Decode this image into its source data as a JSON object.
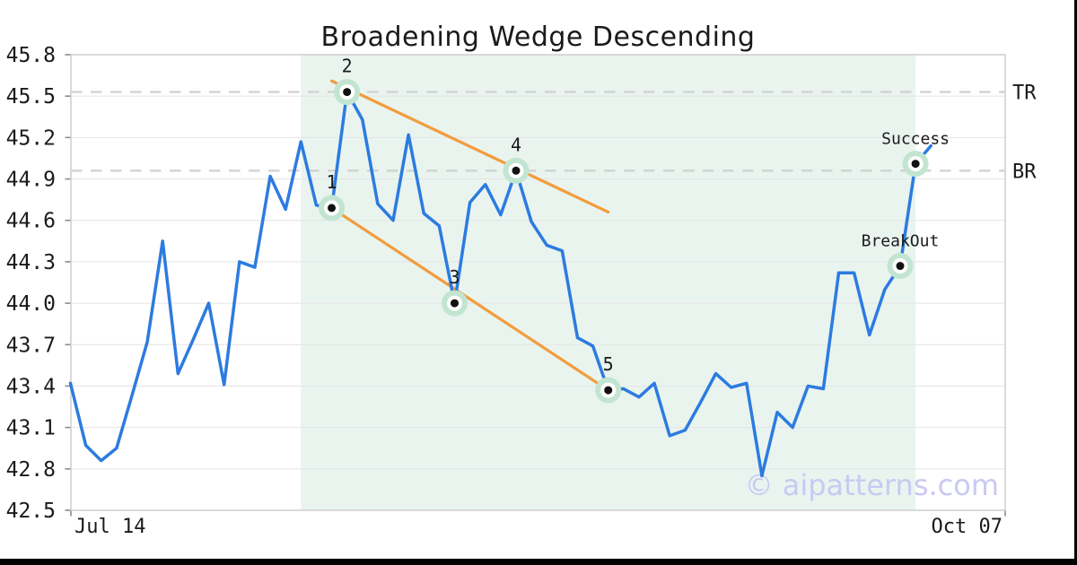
{
  "title": "Broadening Wedge Descending",
  "watermark": "© aipatterns.com",
  "colors": {
    "line": "#2c7be0",
    "trend": "#f39c3d",
    "shade": "#e9f4ef",
    "grid": "#e4e4e4",
    "dashed": "#d2d2d2",
    "axis_border": "#d0d0d0",
    "tick": "#8a8a8a",
    "marker_halo": "#c2e5d1",
    "marker_ring": "#ffffff",
    "marker_dot": "#111111",
    "watermark": "#c9c9f2",
    "text": "#1a1a1a"
  },
  "chart_data": {
    "type": "line",
    "title": "Broadening Wedge Descending",
    "ylim": [
      42.5,
      45.8
    ],
    "yticks": [
      "45.8",
      "45.5",
      "45.2",
      "44.9",
      "44.6",
      "44.3",
      "44.0",
      "43.7",
      "43.4",
      "43.1",
      "42.8",
      "42.5"
    ],
    "xticks": [
      {
        "label": "Jul 14",
        "position": "left"
      },
      {
        "label": "Oct 07",
        "position": "right"
      }
    ],
    "num_points": 57,
    "values": [
      43.42,
      42.97,
      42.86,
      42.95,
      43.33,
      43.72,
      44.45,
      43.49,
      43.74,
      44.0,
      43.41,
      44.3,
      44.26,
      44.92,
      44.68,
      45.17,
      44.71,
      44.69,
      45.53,
      45.33,
      44.72,
      44.6,
      45.22,
      44.65,
      44.56,
      44.0,
      44.73,
      44.86,
      44.64,
      44.96,
      44.59,
      44.42,
      44.38,
      43.75,
      43.69,
      43.37,
      43.38,
      43.32,
      43.42,
      43.04,
      43.08,
      43.28,
      43.49,
      43.39,
      43.42,
      42.75,
      43.21,
      43.1,
      43.4,
      43.38,
      44.22,
      44.22,
      43.77,
      44.1,
      44.27,
      45.01,
      45.14
    ],
    "pattern_points": [
      {
        "label": "1",
        "index": 17,
        "value": 44.69
      },
      {
        "label": "2",
        "index": 18,
        "value": 45.53
      },
      {
        "label": "3",
        "index": 25,
        "value": 44.0
      },
      {
        "label": "4",
        "index": 29,
        "value": 44.96
      },
      {
        "label": "5",
        "index": 35,
        "value": 43.37
      },
      {
        "label": "BreakOut",
        "index": 54,
        "value": 44.27
      },
      {
        "label": "Success",
        "index": 55,
        "value": 45.01
      }
    ],
    "levels": [
      {
        "label": "TR",
        "value": 45.53
      },
      {
        "label": "BR",
        "value": 44.96
      }
    ],
    "trendlines": [
      {
        "name": "upper-resistance",
        "from_index": 17,
        "from_value": 45.61,
        "to_index": 35,
        "to_value": 44.66
      },
      {
        "name": "lower-support",
        "from_index": 17,
        "from_value": 44.69,
        "to_index": 35,
        "to_value": 43.37
      }
    ],
    "shaded_region": {
      "from_index": 15,
      "to_index": 55
    },
    "grid": true,
    "legend_position": "none"
  }
}
